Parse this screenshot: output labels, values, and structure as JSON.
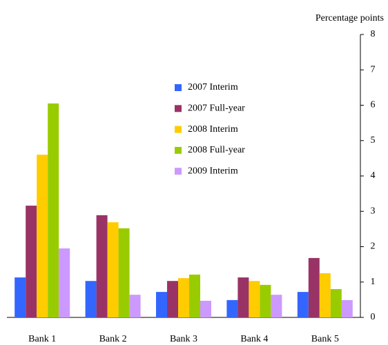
{
  "chart_data": {
    "type": "bar",
    "y_label": "Percentage points",
    "categories": [
      "Bank 1",
      "Bank 2",
      "Bank 3",
      "Bank 4",
      "Bank 5"
    ],
    "series": [
      {
        "name": "2007 Interim",
        "color": "#3366ff",
        "values": [
          1.13,
          1.03,
          0.72,
          0.49,
          0.72
        ]
      },
      {
        "name": "2007 Full-year",
        "color": "#993366",
        "values": [
          3.16,
          2.89,
          1.03,
          1.13,
          1.68
        ]
      },
      {
        "name": "2008 Interim",
        "color": "#ffcc00",
        "values": [
          4.6,
          2.69,
          1.11,
          1.03,
          1.25
        ]
      },
      {
        "name": "2008 Full-year",
        "color": "#99cc00",
        "values": [
          6.05,
          2.52,
          1.21,
          0.92,
          0.8
        ]
      },
      {
        "name": "2009 Interim",
        "color": "#cc99ff",
        "values": [
          1.95,
          0.64,
          0.47,
          0.64,
          0.49
        ]
      }
    ],
    "ylim": [
      0,
      8
    ],
    "yticks": [
      0,
      1,
      2,
      3,
      4,
      5,
      6,
      7,
      8
    ],
    "y_axis_side": "right",
    "legend": "center",
    "grid": false
  }
}
